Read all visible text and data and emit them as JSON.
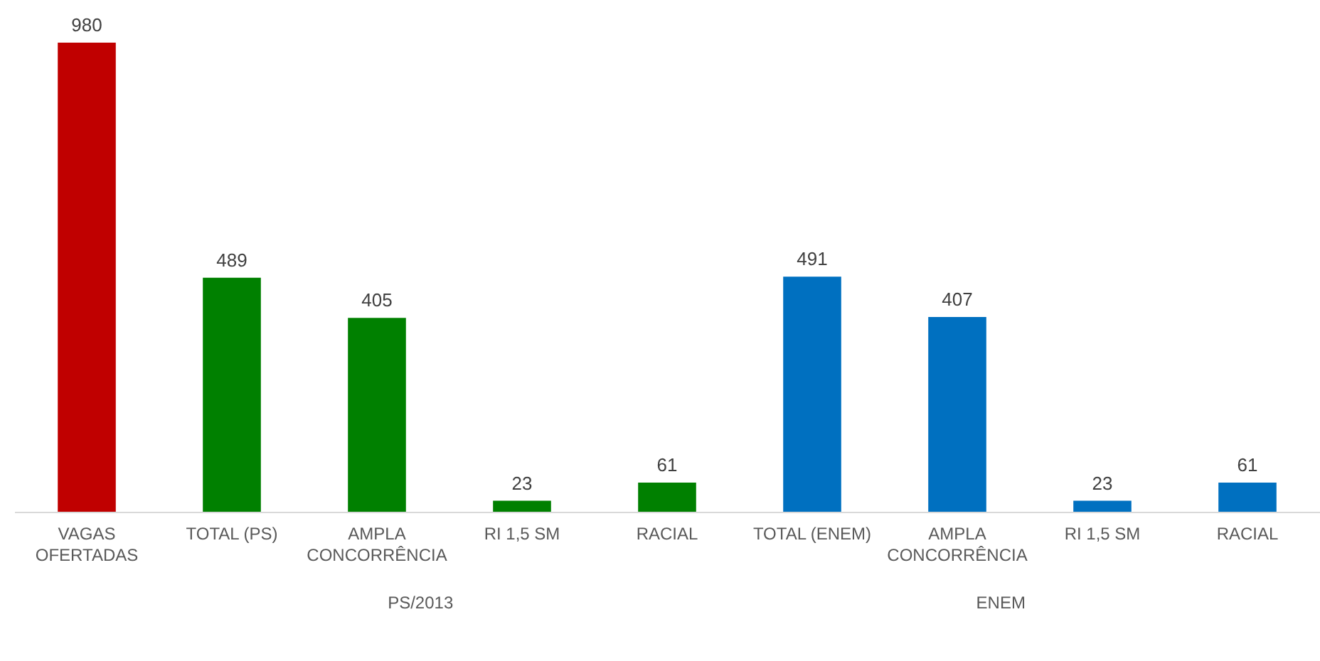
{
  "chart_data": {
    "type": "bar",
    "categories": [
      "VAGAS OFERTADAS",
      "TOTAL (PS)",
      "AMPLA CONCORRÊNCIA",
      "RI 1,5 SM",
      "RACIAL",
      "TOTAL (ENEM)",
      "AMPLA CONCORRÊNCIA",
      "RI 1,5 SM",
      "RACIAL"
    ],
    "values": [
      980,
      489,
      405,
      23,
      61,
      491,
      407,
      23,
      61
    ],
    "colors": [
      "#c00000",
      "#008000",
      "#008000",
      "#008000",
      "#008000",
      "#0070c0",
      "#0070c0",
      "#0070c0",
      "#0070c0"
    ],
    "data_labels": true,
    "annotations": [
      "PS/2013",
      "ENEM"
    ]
  }
}
